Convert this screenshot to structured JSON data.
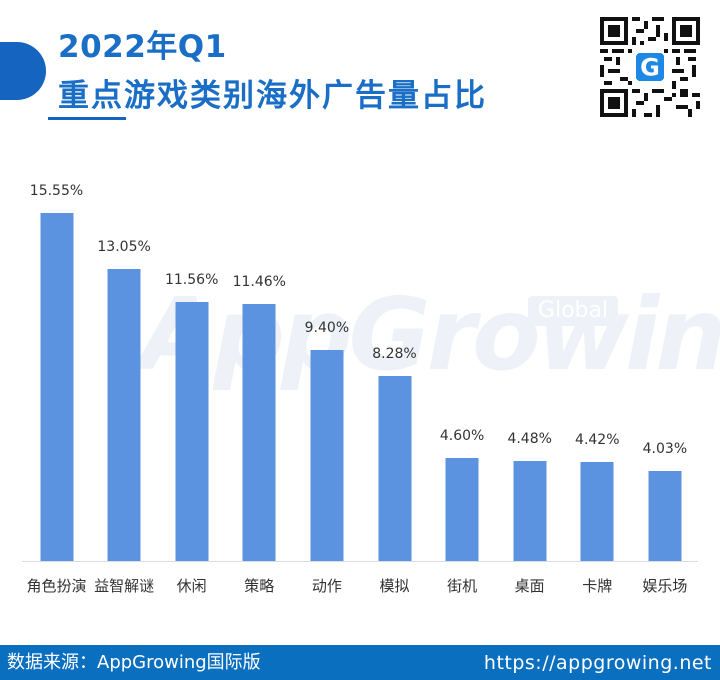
{
  "header": {
    "title_line1": "2022年Q1",
    "title_line2": "重点游戏类别海外广告量占比",
    "accent_color": "#1a6ec6"
  },
  "qr_code": {
    "icon": "qr-code-icon",
    "center_logo": "appgrowing-logo-icon"
  },
  "watermark": {
    "text": "AppGrowing",
    "badge": "Global"
  },
  "chart_data": {
    "type": "bar",
    "title": "2022年Q1 重点游戏类别海外广告量占比",
    "xlabel": "",
    "ylabel": "",
    "categories": [
      "角色扮演",
      "益智解谜",
      "休闲",
      "策略",
      "动作",
      "模拟",
      "街机",
      "桌面",
      "卡牌",
      "娱乐场"
    ],
    "values": [
      15.55,
      13.05,
      11.56,
      11.46,
      9.4,
      8.28,
      4.6,
      4.48,
      4.42,
      4.03
    ],
    "value_labels": [
      "15.55%",
      "13.05%",
      "11.56%",
      "11.46%",
      "9.40%",
      "8.28%",
      "4.60%",
      "4.48%",
      "4.42%",
      "4.03%"
    ],
    "unit": "%",
    "ylim": [
      0,
      16
    ],
    "grid": false,
    "legend": null,
    "bar_color": "#5b93e0"
  },
  "footer": {
    "source": "数据来源：AppGrowing国际版",
    "url": "https://appgrowing.net",
    "background": "#0b6fc0"
  }
}
